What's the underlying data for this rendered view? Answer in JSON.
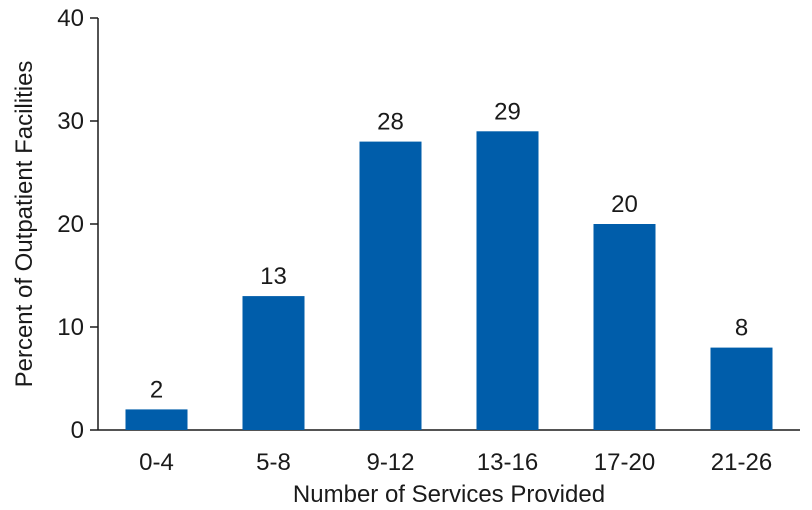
{
  "chart_data": {
    "type": "bar",
    "title": "",
    "xlabel": "Number of Services Provided",
    "ylabel": "Percent of Outpatient Facilities",
    "categories": [
      "0-4",
      "5-8",
      "9-12",
      "13-16",
      "17-20",
      "21-26"
    ],
    "values": [
      2,
      13,
      28,
      29,
      20,
      8
    ],
    "data_labels": [
      "2",
      "13",
      "28",
      "29",
      "20",
      "8"
    ],
    "ylim": [
      0,
      40
    ],
    "yticks": [
      0,
      10,
      20,
      30,
      40
    ],
    "ytick_labels": [
      "0",
      "10",
      "20",
      "30",
      "40"
    ],
    "grid": false,
    "legend": "none",
    "bar_color": "#005DAA",
    "axis_color": "#1a1a1a"
  }
}
